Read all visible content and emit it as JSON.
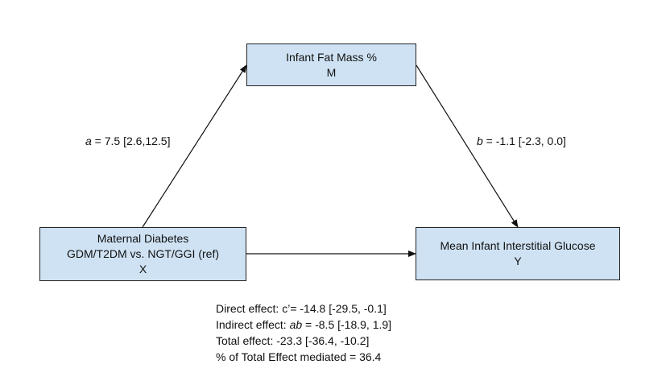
{
  "nodes": {
    "mediator": {
      "line1": "Infant Fat Mass %",
      "line2": "M"
    },
    "exposure": {
      "line1": "Maternal Diabetes",
      "line2": "GDM/T2DM vs. NGT/GGI (ref)",
      "line3": "X"
    },
    "outcome": {
      "line1": "Mean Infant Interstitial Glucose",
      "line2": "Y"
    }
  },
  "paths": {
    "a": {
      "symbol": "a",
      "text": " = 7.5 [2.6,12.5]"
    },
    "b": {
      "symbol": "b",
      "text": " = -1.1 [-2.3, 0.0]"
    }
  },
  "effects": {
    "direct": "Direct effect: c’= -14.8 [-29.5, -0.1]",
    "indirect_prefix": "Indirect effect: ",
    "indirect_symbol": "ab",
    "indirect_value": " = -8.5 [-18.9, 1.9]",
    "total": "Total effect: -23.3 [-36.4, -10.2]",
    "mediated": "% of Total Effect mediated = 36.4"
  },
  "colors": {
    "box_fill": "#cfe2f3",
    "stroke": "#222222"
  }
}
